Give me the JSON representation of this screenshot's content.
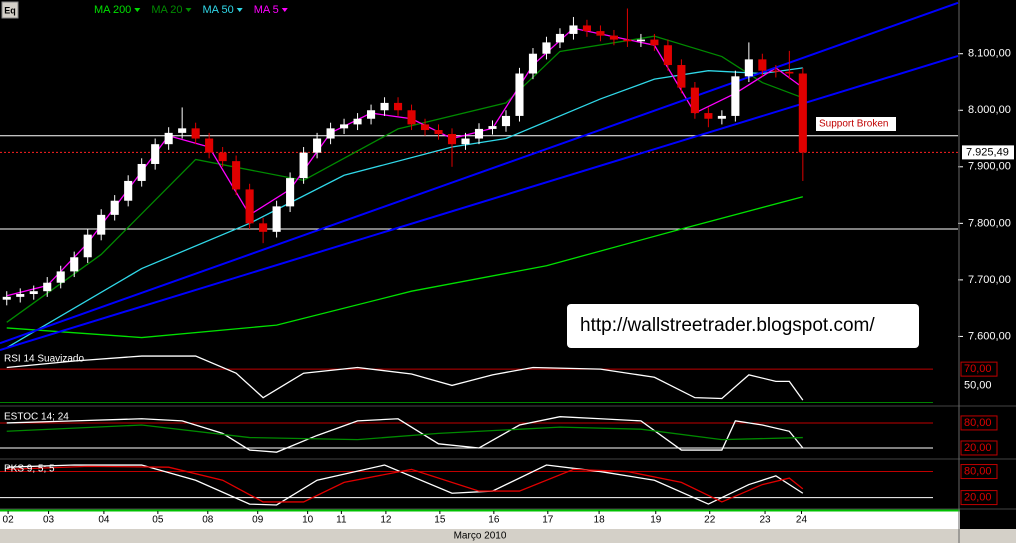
{
  "chart_data": [
    {
      "type": "candlestick",
      "icon": "Eq",
      "xlim": [
        -0.5,
        70.5
      ],
      "xticks": [
        {
          "value": 0.1,
          "label": "02"
        },
        {
          "value": 3.1,
          "label": "03"
        },
        {
          "value": 7.2,
          "label": "04"
        },
        {
          "value": 11.2,
          "label": "05"
        },
        {
          "value": 14.9,
          "label": "08"
        },
        {
          "value": 18.6,
          "label": "09"
        },
        {
          "value": 22.3,
          "label": "10"
        },
        {
          "value": 24.8,
          "label": "11"
        },
        {
          "value": 28.1,
          "label": "12"
        },
        {
          "value": 32.1,
          "label": "15"
        },
        {
          "value": 36.1,
          "label": "16"
        },
        {
          "value": 40.1,
          "label": "17"
        },
        {
          "value": 43.9,
          "label": "18"
        },
        {
          "value": 48.1,
          "label": "19"
        },
        {
          "value": 52.1,
          "label": "22"
        },
        {
          "value": 56.2,
          "label": "23"
        },
        {
          "value": 58.9,
          "label": "24"
        }
      ],
      "xlabel": "Março 2010",
      "ylim": [
        7576,
        8195
      ],
      "yticks": [
        {
          "value": 8100,
          "label": "8.100,00"
        },
        {
          "value": 8000,
          "label": "8.000,00"
        },
        {
          "value": 7900,
          "label": "7.900,00"
        },
        {
          "value": 7800,
          "label": "7.800,00"
        },
        {
          "value": 7700,
          "label": "7.700,00"
        },
        {
          "value": 7600,
          "label": "7.600,00"
        }
      ],
      "up_color": "#ffffff",
      "down_color": "#e00000",
      "open": [
        7665,
        7670,
        7675,
        7680,
        7695,
        7715,
        7740,
        7780,
        7815,
        7840,
        7875,
        7905,
        7940,
        7960,
        7968,
        7950,
        7925,
        7910,
        7860,
        7800,
        7785,
        7830,
        7880,
        7925,
        7950,
        7968,
        7975,
        7985,
        8000,
        8013,
        8000,
        7975,
        7965,
        7958,
        7940,
        7950,
        7967,
        7972,
        7990,
        8065,
        8100,
        8120,
        8135,
        8150,
        8140,
        8132,
        8125,
        8122,
        8125,
        8115,
        8080,
        8040,
        7995,
        7985,
        7990,
        8060,
        8090,
        8070,
        8068,
        8065
      ],
      "high": [
        7680,
        7685,
        7690,
        7705,
        7725,
        7750,
        7790,
        7825,
        7850,
        7885,
        7915,
        7950,
        7970,
        8005,
        7978,
        7960,
        7935,
        7920,
        7870,
        7810,
        7840,
        7890,
        7935,
        7960,
        7978,
        7985,
        7995,
        8010,
        8023,
        8023,
        8010,
        7985,
        7975,
        7968,
        7960,
        7977,
        7982,
        8000,
        8075,
        8110,
        8130,
        8145,
        8165,
        8160,
        8150,
        8142,
        8180,
        8135,
        8135,
        8125,
        8090,
        8050,
        8005,
        8000,
        8070,
        8120,
        8100,
        8080,
        8105,
        8075
      ],
      "low": [
        7655,
        7660,
        7665,
        7670,
        7685,
        7705,
        7730,
        7770,
        7805,
        7830,
        7865,
        7895,
        7930,
        7950,
        7940,
        7915,
        7900,
        7850,
        7790,
        7765,
        7775,
        7820,
        7870,
        7915,
        7940,
        7958,
        7965,
        7975,
        7990,
        7990,
        7965,
        7955,
        7948,
        7900,
        7930,
        7940,
        7957,
        7962,
        7980,
        8055,
        8090,
        8110,
        8125,
        8130,
        8122,
        8115,
        8112,
        8112,
        8105,
        8070,
        8030,
        7985,
        7970,
        7975,
        7980,
        8050,
        8060,
        8058,
        8055,
        7875
      ],
      "close": [
        7670,
        7675,
        7680,
        7695,
        7715,
        7740,
        7780,
        7815,
        7840,
        7875,
        7905,
        7940,
        7960,
        7968,
        7950,
        7925,
        7910,
        7860,
        7800,
        7785,
        7830,
        7880,
        7925,
        7950,
        7968,
        7975,
        7985,
        8000,
        8013,
        8000,
        7975,
        7965,
        7958,
        7940,
        7950,
        7967,
        7972,
        7990,
        8065,
        8100,
        8120,
        8135,
        8150,
        8140,
        8132,
        8125,
        8122,
        8125,
        8115,
        8080,
        8040,
        7995,
        7985,
        7990,
        8060,
        8090,
        8070,
        8068,
        8065,
        7925.49
      ],
      "series": [
        {
          "name": "MA 200",
          "color": "#00e000",
          "x": [
            0,
            10,
            20,
            30,
            40,
            50,
            59
          ],
          "values": [
            7615,
            7598,
            7620,
            7680,
            7725,
            7790,
            7847
          ]
        },
        {
          "name": "MA 20",
          "color": "#008a00",
          "x": [
            0,
            7,
            14,
            22,
            29,
            37,
            41,
            48,
            53,
            56,
            59
          ],
          "values": [
            7625,
            7745,
            7913,
            7876,
            7967,
            8013,
            8104,
            8131,
            8095,
            8049,
            8022
          ]
        },
        {
          "name": "MA 50",
          "color": "#30d8e8",
          "x": [
            0,
            10,
            18,
            25,
            33,
            37,
            44,
            48,
            52,
            56,
            59
          ],
          "values": [
            7580,
            7720,
            7800,
            7885,
            7935,
            7950,
            8020,
            8055,
            8070,
            8065,
            8075
          ]
        },
        {
          "name": "MA 5",
          "color": "#ff00ff",
          "x": [
            0,
            3,
            6,
            9,
            12,
            15,
            18,
            21,
            24,
            27,
            30,
            33,
            36,
            39,
            42,
            45,
            48,
            51,
            54,
            57,
            59
          ],
          "values": [
            7672,
            7690,
            7765,
            7860,
            7955,
            7935,
            7815,
            7860,
            7960,
            7995,
            7985,
            7950,
            7968,
            8080,
            8145,
            8130,
            8115,
            7995,
            8030,
            8075,
            8040
          ]
        }
      ],
      "trendlines": [
        {
          "color": "#0000ff",
          "x": [
            -0.5,
            70.5
          ],
          "values": [
            7588,
            8190
          ]
        },
        {
          "color": "#0000ff",
          "x": [
            -0.5,
            70.5
          ],
          "values": [
            7576,
            8096
          ]
        }
      ],
      "hlines": [
        7955,
        7790
      ],
      "last_price": {
        "value": 7925.49,
        "label": "7.925,49"
      },
      "annotation": "Support Broken",
      "watermark": "http://wallstreetrader.blogspot.com/"
    },
    {
      "type": "line",
      "title": "RSI 14 Suavizado",
      "ylim": [
        26,
        91
      ],
      "yticks": [
        {
          "value": 70,
          "label": "70,00"
        },
        {
          "value": 50,
          "label": "50,00"
        }
      ],
      "levels": [
        {
          "value": 70,
          "color": "#c00000"
        },
        {
          "value": 29,
          "color": "#008000"
        }
      ],
      "series": [
        {
          "color": "#ffffff",
          "x": [
            0,
            5,
            10,
            14,
            17,
            19,
            22,
            26,
            30,
            33,
            36,
            39,
            44,
            48,
            51,
            53,
            55,
            57,
            58,
            59
          ],
          "values": [
            72,
            80,
            86,
            86,
            65,
            35,
            65,
            72,
            64,
            50,
            63,
            72,
            70,
            60,
            35,
            34,
            63,
            55,
            55,
            32
          ]
        }
      ]
    },
    {
      "type": "line",
      "title": "ESTOC 14; 24",
      "ylim": [
        -4,
        111
      ],
      "yticks": [
        {
          "value": 80,
          "label": "80,00"
        },
        {
          "value": 20,
          "label": "20,00"
        }
      ],
      "levels": [
        {
          "value": 80,
          "color": "#c00000"
        },
        {
          "value": 20,
          "color": "#ffffff"
        }
      ],
      "series": [
        {
          "color": "#ffffff",
          "x": [
            0,
            5,
            10,
            13,
            16,
            18,
            20,
            23,
            26,
            29,
            32,
            35,
            38,
            41,
            44,
            47,
            50,
            53,
            54,
            56,
            58,
            59
          ],
          "values": [
            80,
            85,
            90,
            85,
            55,
            15,
            10,
            50,
            85,
            90,
            30,
            20,
            75,
            95,
            90,
            85,
            15,
            15,
            85,
            75,
            60,
            20
          ]
        },
        {
          "color": "#008a00",
          "x": [
            0,
            10,
            18,
            26,
            32,
            41,
            47,
            53,
            59
          ],
          "values": [
            60,
            75,
            45,
            40,
            55,
            70,
            65,
            40,
            45
          ]
        }
      ]
    },
    {
      "type": "line",
      "title": "PKS 9; 5; 5",
      "ylim": [
        -4,
        102
      ],
      "yticks": [
        {
          "value": 80,
          "label": "80,00"
        },
        {
          "value": 20,
          "label": "20,00"
        }
      ],
      "levels": [
        {
          "value": 80,
          "color": "#c00000"
        },
        {
          "value": 20,
          "color": "#ffffff"
        }
      ],
      "series": [
        {
          "color": "#ffffff",
          "x": [
            0,
            5,
            10,
            14,
            18,
            20,
            23,
            28,
            33,
            36,
            40,
            44,
            48,
            52,
            55,
            57,
            59
          ],
          "values": [
            90,
            95,
            95,
            60,
            5,
            3,
            60,
            95,
            30,
            35,
            95,
            80,
            60,
            5,
            50,
            70,
            30
          ]
        },
        {
          "color": "#e00000",
          "x": [
            0,
            6,
            12,
            16,
            19,
            22,
            25,
            30,
            35,
            38,
            42,
            46,
            50,
            53,
            56,
            58,
            59
          ],
          "values": [
            85,
            92,
            90,
            60,
            10,
            10,
            55,
            85,
            35,
            35,
            85,
            80,
            55,
            10,
            50,
            65,
            40
          ]
        }
      ]
    }
  ]
}
